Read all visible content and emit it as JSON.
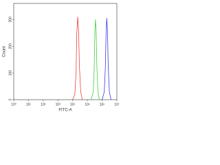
{
  "chart_data": {
    "type": "line",
    "xscale": "log",
    "x_label": "FITC-A",
    "y_label": "Count",
    "xlim": [
      1,
      10000000
    ],
    "xticks": [
      {
        "value": 1,
        "label": "10⁰"
      },
      {
        "value": 10,
        "label": "10¹"
      },
      {
        "value": 100,
        "label": "10²"
      },
      {
        "value": 1000,
        "label": "10³"
      },
      {
        "value": 10000,
        "label": "10⁴"
      },
      {
        "value": 100000,
        "label": "10⁵"
      },
      {
        "value": 1000000,
        "label": "10⁶"
      },
      {
        "value": 10000000,
        "label": "10⁷"
      }
    ],
    "ylim": [
      0,
      360
    ],
    "yticks": [
      0,
      100,
      200,
      300
    ],
    "series": [
      {
        "color": "#e8433c",
        "x": [
          10000,
          14000,
          17000,
          19000,
          22000,
          25000,
          29000,
          35000,
          45000
        ],
        "values": [
          0,
          20,
          100,
          250,
          310,
          260,
          120,
          30,
          0
        ]
      },
      {
        "color": "#3fcf3f",
        "x": [
          180000,
          250000,
          290000,
          320000,
          350000,
          390000,
          440000,
          520000,
          650000
        ],
        "values": [
          0,
          30,
          120,
          250,
          300,
          260,
          120,
          30,
          0
        ]
      },
      {
        "color": "#3a3ae6",
        "x": [
          1000000,
          1400000,
          1650000,
          1850000,
          2050000,
          2300000,
          2600000,
          3100000,
          4000000
        ],
        "values": [
          0,
          30,
          120,
          250,
          305,
          260,
          120,
          30,
          0
        ]
      }
    ]
  }
}
